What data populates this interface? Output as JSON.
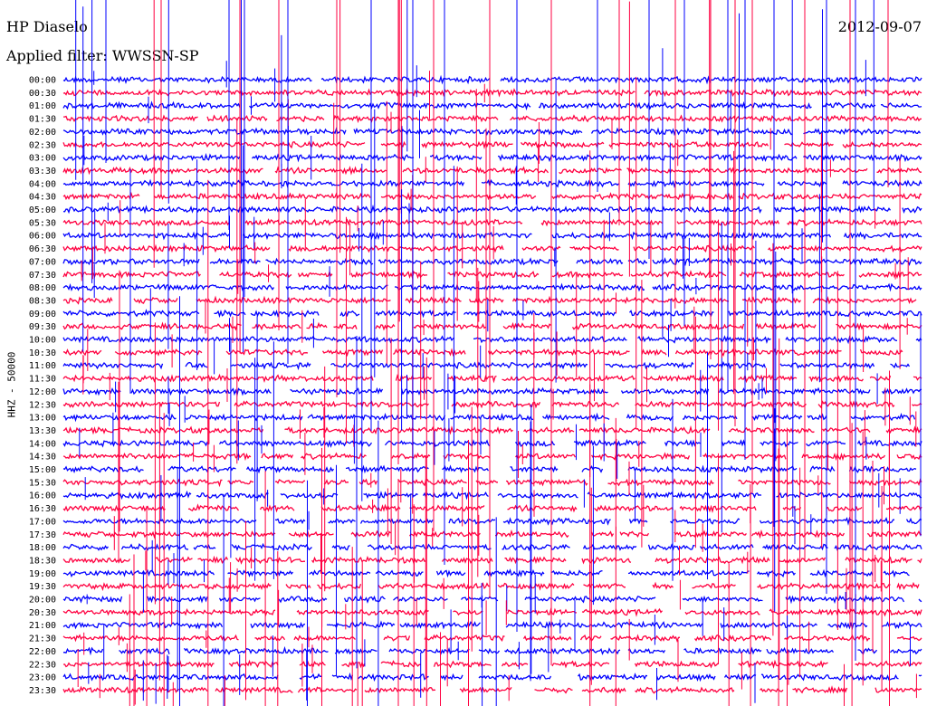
{
  "header": {
    "station": "HP Diaselo",
    "date": "2012-09-07",
    "filter": "Applied filter: WWSSN-SP"
  },
  "chart_data": {
    "type": "line",
    "title": "HP Diaselo",
    "subtitle": "Applied filter: WWSSN-SP",
    "date": "2012-09-07",
    "ylabel": "HHZ - 50000",
    "xlabel": "",
    "grid": false,
    "legend": "none",
    "colors": [
      "#0000ff",
      "#ff0040"
    ],
    "rows": [
      {
        "label": "00:00",
        "color": "#0000ff"
      },
      {
        "label": "00:30",
        "color": "#ff0040"
      },
      {
        "label": "01:00",
        "color": "#0000ff"
      },
      {
        "label": "01:30",
        "color": "#ff0040"
      },
      {
        "label": "02:00",
        "color": "#0000ff"
      },
      {
        "label": "02:30",
        "color": "#ff0040"
      },
      {
        "label": "03:00",
        "color": "#0000ff"
      },
      {
        "label": "03:30",
        "color": "#ff0040"
      },
      {
        "label": "04:00",
        "color": "#0000ff"
      },
      {
        "label": "04:30",
        "color": "#ff0040"
      },
      {
        "label": "05:00",
        "color": "#0000ff"
      },
      {
        "label": "05:30",
        "color": "#ff0040"
      },
      {
        "label": "06:00",
        "color": "#0000ff"
      },
      {
        "label": "06:30",
        "color": "#ff0040"
      },
      {
        "label": "07:00",
        "color": "#0000ff"
      },
      {
        "label": "07:30",
        "color": "#ff0040"
      },
      {
        "label": "08:00",
        "color": "#0000ff"
      },
      {
        "label": "08:30",
        "color": "#ff0040"
      },
      {
        "label": "09:00",
        "color": "#0000ff"
      },
      {
        "label": "09:30",
        "color": "#ff0040"
      },
      {
        "label": "10:00",
        "color": "#0000ff"
      },
      {
        "label": "10:30",
        "color": "#ff0040"
      },
      {
        "label": "11:00",
        "color": "#0000ff"
      },
      {
        "label": "11:30",
        "color": "#ff0040"
      },
      {
        "label": "12:00",
        "color": "#0000ff"
      },
      {
        "label": "12:30",
        "color": "#ff0040"
      },
      {
        "label": "13:00",
        "color": "#0000ff"
      },
      {
        "label": "13:30",
        "color": "#ff0040"
      },
      {
        "label": "14:00",
        "color": "#0000ff"
      },
      {
        "label": "14:30",
        "color": "#ff0040"
      },
      {
        "label": "15:00",
        "color": "#0000ff"
      },
      {
        "label": "15:30",
        "color": "#ff0040"
      },
      {
        "label": "16:00",
        "color": "#0000ff"
      },
      {
        "label": "16:30",
        "color": "#ff0040"
      },
      {
        "label": "17:00",
        "color": "#0000ff"
      },
      {
        "label": "17:30",
        "color": "#ff0040"
      },
      {
        "label": "18:00",
        "color": "#0000ff"
      },
      {
        "label": "18:30",
        "color": "#ff0040"
      },
      {
        "label": "19:00",
        "color": "#0000ff"
      },
      {
        "label": "19:30",
        "color": "#ff0040"
      },
      {
        "label": "20:00",
        "color": "#0000ff"
      },
      {
        "label": "20:30",
        "color": "#ff0040"
      },
      {
        "label": "21:00",
        "color": "#0000ff"
      },
      {
        "label": "21:30",
        "color": "#ff0040"
      },
      {
        "label": "22:00",
        "color": "#0000ff"
      },
      {
        "label": "22:30",
        "color": "#ff0040"
      },
      {
        "label": "23:00",
        "color": "#0000ff"
      },
      {
        "label": "23:30",
        "color": "#ff0040"
      }
    ]
  }
}
